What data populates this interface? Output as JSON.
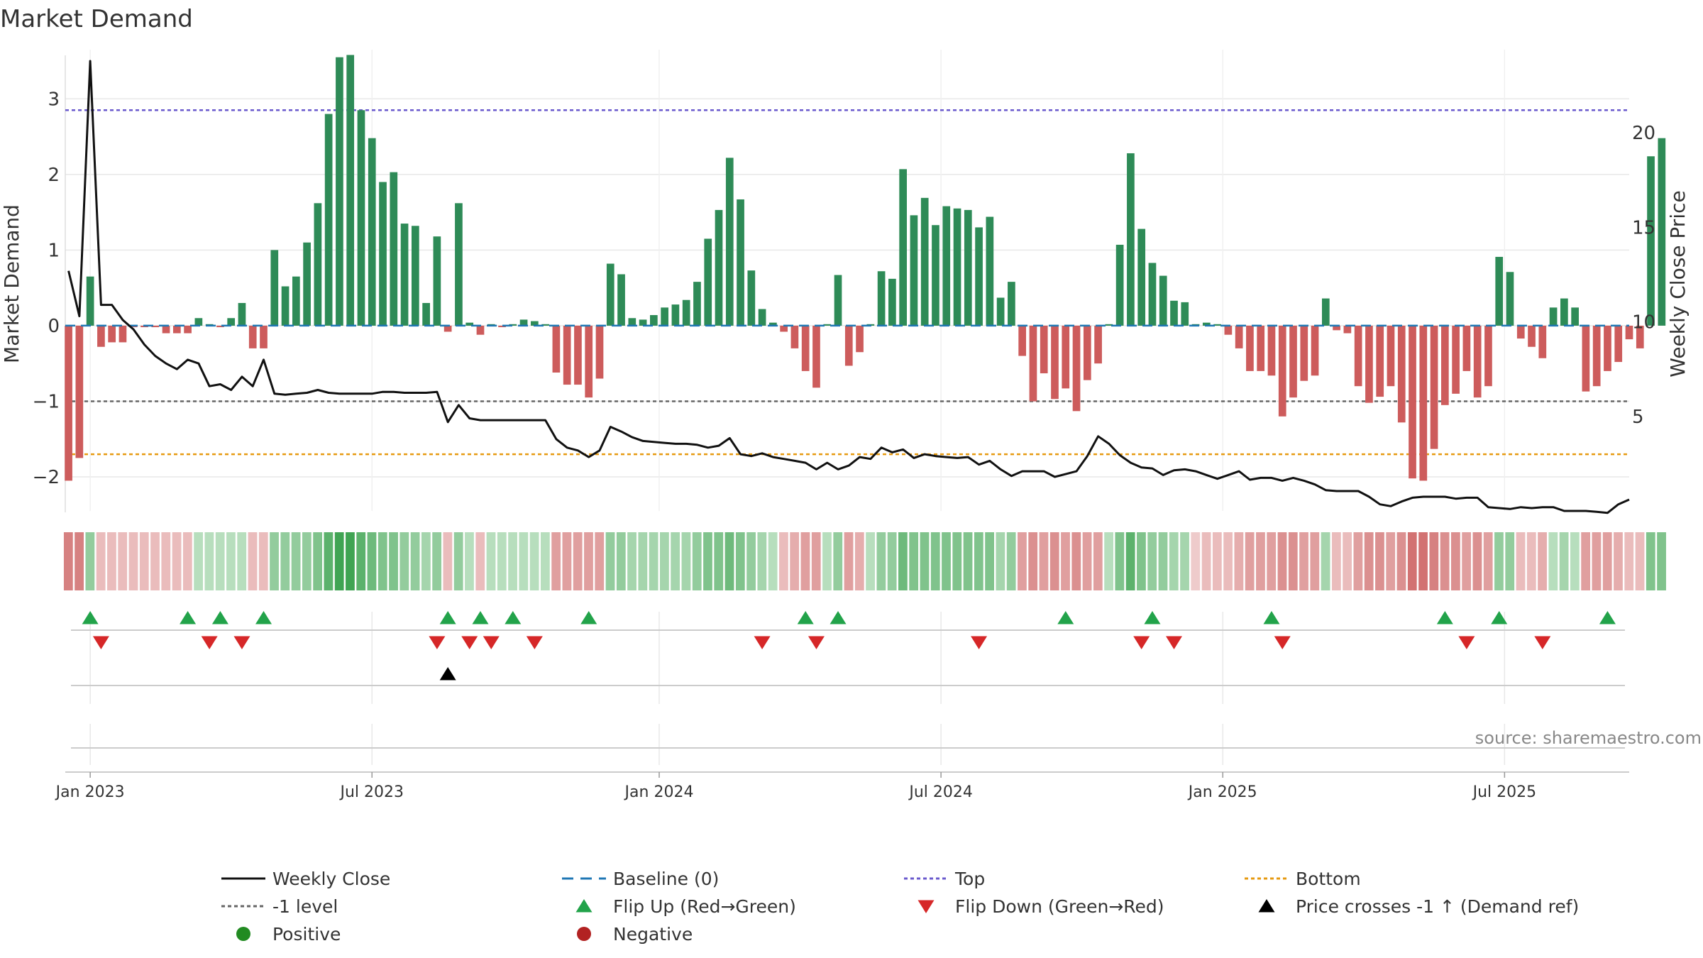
{
  "colors": {
    "positive_bar": "#2e8b57",
    "negative_bar": "#cd5c5c",
    "close_line": "#111111",
    "baseline": "#1f77b4",
    "top": "#6a5acd",
    "minus1": "#666666",
    "bottom": "#e69a10",
    "flip_up": "#22a34a",
    "flip_down": "#d62728",
    "cross": "#000000",
    "positive_dot": "#228b22",
    "negative_dot": "#b22222",
    "grid": "#e8e8e8",
    "axis_text": "#333333",
    "source_text": "#888888"
  },
  "chart_data": {
    "type": "bar",
    "title": "Market Demand",
    "ylabel_left": "Market Demand",
    "ylabel_right": "Weekly Close Price",
    "ylim_left": [
      -2.45,
      3.65
    ],
    "ylim_right": [
      0,
      24.4
    ],
    "yticks_left": [
      3,
      2,
      1,
      0,
      -1,
      -2
    ],
    "yticks_right": [
      20,
      15,
      10,
      5
    ],
    "x_ticks": [
      {
        "label": "Jan 2023",
        "week": 2
      },
      {
        "label": "Jul 2023",
        "week": 28
      },
      {
        "label": "Jan 2024",
        "week": 54.5
      },
      {
        "label": "Jul 2024",
        "week": 80.5
      },
      {
        "label": "Jan 2025",
        "week": 106.5
      },
      {
        "label": "Jul 2025",
        "week": 132.5
      }
    ],
    "x_range": [
      -0.3,
      144
    ],
    "reference_lines": {
      "top": 2.85,
      "minus1": -1,
      "bottom": -1.7,
      "baseline": 0
    },
    "demand": [
      -2.05,
      -1.75,
      0.65,
      -0.28,
      -0.22,
      -0.22,
      -0.02,
      -0.02,
      -0.02,
      -0.1,
      -0.1,
      -0.1,
      0.1,
      0.02,
      -0.02,
      0.1,
      0.3,
      -0.3,
      -0.3,
      1.0,
      0.52,
      0.65,
      1.1,
      1.62,
      2.8,
      3.55,
      3.58,
      2.85,
      2.48,
      1.9,
      2.03,
      1.35,
      1.32,
      0.3,
      1.18,
      -0.08,
      1.62,
      0.04,
      -0.12,
      0.02,
      -0.02,
      0.02,
      0.08,
      0.06,
      0.02,
      -0.62,
      -0.78,
      -0.78,
      -0.95,
      -0.7,
      0.82,
      0.68,
      0.1,
      0.08,
      0.14,
      0.24,
      0.28,
      0.34,
      0.58,
      1.15,
      1.53,
      2.22,
      1.67,
      0.73,
      0.22,
      0.04,
      -0.08,
      -0.3,
      -0.6,
      -0.82,
      0.02,
      0.67,
      -0.53,
      -0.35,
      0.02,
      0.72,
      0.62,
      2.07,
      1.46,
      1.69,
      1.33,
      1.58,
      1.55,
      1.53,
      1.3,
      1.44,
      0.37,
      0.58,
      -0.4,
      -1.0,
      -0.63,
      -0.97,
      -0.83,
      -1.13,
      -0.72,
      -0.5,
      0.02,
      1.07,
      2.28,
      1.28,
      0.83,
      0.66,
      0.33,
      0.31,
      0.02,
      0.04,
      0.02,
      -0.12,
      -0.3,
      -0.6,
      -0.6,
      -0.66,
      -1.2,
      -0.95,
      -0.73,
      -0.66,
      0.36,
      -0.06,
      -0.1,
      -0.8,
      -1.02,
      -0.94,
      -0.8,
      -1.28,
      -2.02,
      -2.05,
      -1.63,
      -1.05,
      -0.9,
      -0.6,
      -0.95,
      -0.8,
      0.91,
      0.71,
      -0.17,
      -0.28,
      -0.43,
      0.24,
      0.36,
      0.24,
      -0.87,
      -0.8,
      -0.6,
      -0.48,
      -0.18,
      -0.3,
      2.24,
      2.48
    ],
    "weekly_close": [
      12.7,
      10.3,
      23.8,
      10.9,
      10.9,
      10.1,
      9.6,
      8.8,
      8.2,
      7.8,
      7.5,
      8.0,
      7.8,
      6.6,
      6.7,
      6.4,
      7.1,
      6.6,
      8.0,
      6.2,
      6.15,
      6.2,
      6.25,
      6.4,
      6.25,
      6.2,
      6.2,
      6.2,
      6.2,
      6.3,
      6.3,
      6.25,
      6.25,
      6.25,
      6.3,
      4.7,
      5.6,
      4.9,
      4.8,
      4.8,
      4.8,
      4.8,
      4.8,
      4.8,
      4.8,
      3.8,
      3.35,
      3.2,
      2.85,
      3.2,
      4.45,
      4.2,
      3.9,
      3.7,
      3.65,
      3.6,
      3.55,
      3.55,
      3.5,
      3.35,
      3.45,
      3.85,
      3.0,
      2.9,
      3.05,
      2.85,
      2.75,
      2.65,
      2.55,
      2.2,
      2.55,
      2.2,
      2.4,
      2.85,
      2.75,
      3.35,
      3.1,
      3.25,
      2.8,
      3.0,
      2.9,
      2.85,
      2.8,
      2.85,
      2.45,
      2.65,
      2.2,
      1.85,
      2.1,
      2.1,
      2.1,
      1.8,
      1.95,
      2.1,
      2.9,
      3.95,
      3.55,
      2.95,
      2.55,
      2.3,
      2.25,
      1.9,
      2.15,
      2.2,
      2.1,
      1.9,
      1.7,
      1.9,
      2.1,
      1.65,
      1.75,
      1.75,
      1.6,
      1.75,
      1.6,
      1.4,
      1.1,
      1.05,
      1.05,
      1.05,
      0.75,
      0.35,
      0.25,
      0.5,
      0.7,
      0.75,
      0.75,
      0.75,
      0.65,
      0.7,
      0.7,
      0.2,
      0.15,
      0.1,
      0.2,
      0.15,
      0.2,
      0.2,
      0.0,
      0.0,
      0.0,
      -0.05,
      -0.1,
      0.35,
      0.6
    ],
    "band_strength": [
      -0.7,
      -0.7,
      0.5,
      -0.3,
      -0.3,
      -0.3,
      -0.3,
      -0.3,
      -0.3,
      -0.3,
      -0.3,
      -0.3,
      0.3,
      0.3,
      0.3,
      0.3,
      0.3,
      -0.3,
      -0.3,
      0.5,
      0.5,
      0.5,
      0.5,
      0.6,
      0.8,
      0.95,
      0.95,
      0.8,
      0.7,
      0.6,
      0.6,
      0.5,
      0.5,
      0.4,
      0.5,
      -0.3,
      0.5,
      0.3,
      -0.3,
      0.3,
      0.3,
      0.3,
      0.3,
      0.3,
      0.3,
      -0.5,
      -0.5,
      -0.5,
      -0.5,
      -0.5,
      0.5,
      0.5,
      0.4,
      0.4,
      0.4,
      0.4,
      0.4,
      0.4,
      0.5,
      0.6,
      0.6,
      0.7,
      0.6,
      0.5,
      0.4,
      0.3,
      -0.3,
      -0.4,
      -0.5,
      -0.5,
      0.3,
      0.5,
      -0.5,
      -0.4,
      0.3,
      0.5,
      0.5,
      0.7,
      0.6,
      0.6,
      0.6,
      0.6,
      0.6,
      0.6,
      0.6,
      0.6,
      0.4,
      0.5,
      -0.5,
      -0.6,
      -0.5,
      -0.6,
      -0.5,
      -0.6,
      -0.5,
      -0.5,
      0.3,
      0.6,
      0.8,
      0.6,
      0.5,
      0.5,
      0.4,
      0.4,
      -0.2,
      -0.3,
      -0.3,
      -0.3,
      -0.4,
      -0.5,
      -0.5,
      -0.5,
      -0.6,
      -0.6,
      -0.5,
      -0.5,
      0.4,
      -0.3,
      -0.3,
      -0.5,
      -0.6,
      -0.6,
      -0.5,
      -0.6,
      -0.8,
      -0.8,
      -0.7,
      -0.6,
      -0.6,
      -0.5,
      -0.6,
      -0.5,
      0.5,
      0.5,
      -0.3,
      -0.3,
      -0.4,
      0.3,
      0.4,
      0.3,
      -0.5,
      -0.5,
      -0.5,
      -0.4,
      -0.3,
      -0.3,
      0.6,
      0.6
    ],
    "flip_up_weeks": [
      2,
      11,
      14,
      18,
      35,
      38,
      41,
      48,
      68,
      71,
      92,
      100,
      111,
      127,
      132,
      142
    ],
    "flip_down_weeks": [
      3,
      13,
      16,
      34,
      37,
      39,
      43,
      64,
      69,
      84,
      99,
      102,
      112,
      129,
      136
    ],
    "price_cross_weeks": [
      35
    ]
  },
  "source_label": "source: sharemaestro.com",
  "legend": [
    {
      "label": "Weekly Close",
      "marker": "line",
      "color_key": "close_line"
    },
    {
      "label": "Baseline (0)",
      "marker": "dashed",
      "color_key": "baseline"
    },
    {
      "label": "Top",
      "marker": "dotted",
      "color_key": "top"
    },
    {
      "label": "Bottom",
      "marker": "dotted",
      "color_key": "bottom"
    },
    {
      "label": "-1 level",
      "marker": "dotted",
      "color_key": "minus1"
    },
    {
      "label": "Flip Up (Red→Green)",
      "marker": "triangle-up",
      "color_key": "flip_up"
    },
    {
      "label": "Flip Down (Green→Red)",
      "marker": "triangle-down",
      "color_key": "flip_down"
    },
    {
      "label": "Price crosses -1 ↑ (Demand ref)",
      "marker": "triangle-up",
      "color_key": "cross"
    },
    {
      "label": "Positive",
      "marker": "circle",
      "color_key": "positive_dot"
    },
    {
      "label": "Negative",
      "marker": "circle",
      "color_key": "negative_dot"
    }
  ]
}
